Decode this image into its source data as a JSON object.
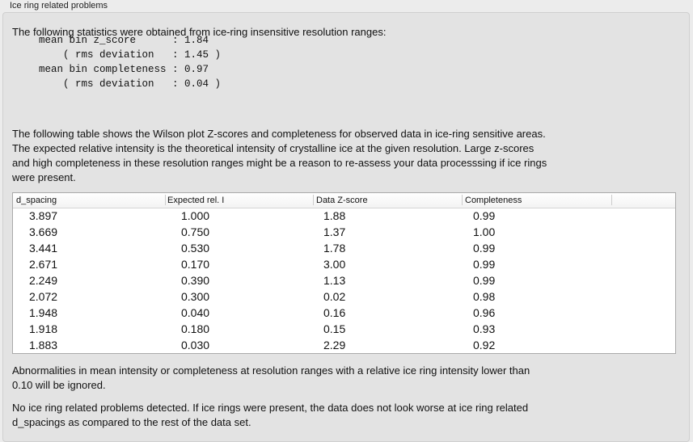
{
  "group_title": "Ice ring related problems",
  "intro": "The following statistics were obtained from ice-ring insensitive resolution ranges:",
  "stats_block": "mean bin z_score      : 1.84\n    ( rms deviation   : 1.45 )\nmean bin completeness : 0.97\n    ( rms deviation   : 0.04 )",
  "table_description": [
    "The following table shows the Wilson plot Z-scores and completeness for observed data in ice-ring sensitive areas.",
    "The expected relative intensity is the theoretical intensity of crystalline ice at the given resolution. Large z-scores",
    "and high completeness in these resolution ranges might be a reason to re-assess your data processsing if ice rings",
    "were present."
  ],
  "table": {
    "columns": [
      "d_spacing",
      "Expected rel. I",
      "Data Z-score",
      "Completeness"
    ],
    "rows": [
      [
        "3.897",
        "1.000",
        "1.88",
        "0.99"
      ],
      [
        "3.669",
        "0.750",
        "1.37",
        "1.00"
      ],
      [
        "3.441",
        "0.530",
        "1.78",
        "0.99"
      ],
      [
        "2.671",
        "0.170",
        "3.00",
        "0.99"
      ],
      [
        "2.249",
        "0.390",
        "1.13",
        "0.99"
      ],
      [
        "2.072",
        "0.300",
        "0.02",
        "0.98"
      ],
      [
        "1.948",
        "0.040",
        "0.16",
        "0.96"
      ],
      [
        "1.918",
        "0.180",
        "0.15",
        "0.93"
      ],
      [
        "1.883",
        "0.030",
        "2.29",
        "0.92"
      ]
    ]
  },
  "note": [
    "Abnormalities in mean intensity or completeness at resolution ranges with a relative ice ring intensity lower than",
    "0.10 will be ignored."
  ],
  "conclusion": [
    "No ice ring related problems detected. If ice rings were present, the data does not look worse at ice ring related",
    "d_spacings as compared to the rest of the data set."
  ]
}
